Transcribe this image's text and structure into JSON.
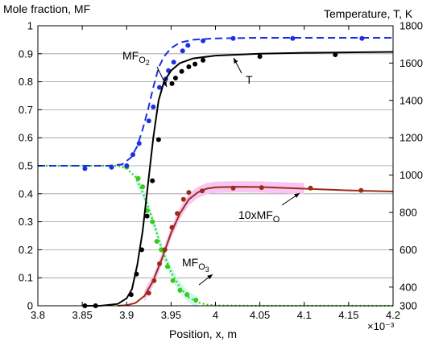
{
  "chart_data": {
    "type": "line",
    "ylabel_left": "Mole fraction, MF",
    "ylabel_right": "Temperature, T, K",
    "xlabel": "Position, x, m",
    "x_exponent": "×10⁻³",
    "xlim": [
      3.8,
      4.2
    ],
    "ylim_left": [
      0,
      1
    ],
    "ylim_right": [
      300,
      1800
    ],
    "x_ticks": [
      "3.8",
      "3.85",
      "3.9",
      "3.95",
      "4",
      "4.05",
      "4.1",
      "4.15",
      "4.2"
    ],
    "y_left_ticks": [
      "0",
      "0.1",
      "0.2",
      "0.3",
      "0.4",
      "0.5",
      "0.6",
      "0.7",
      "0.8",
      "0.9",
      "1"
    ],
    "y_right_ticks": [
      "300",
      "400",
      "600",
      "800",
      "1000",
      "1200",
      "1400",
      "1600",
      "1800"
    ],
    "grid": true,
    "colors": {
      "O2": "#1a2fe6",
      "T": "#000000",
      "O3": "#33cc1a",
      "O": "#a02a18",
      "O_band": "#f7c6f2",
      "O3_band": "#c9f7e8"
    },
    "annotations": {
      "O2": {
        "main": "MF",
        "sub": "O",
        "sub2": "2"
      },
      "T": {
        "main": "T"
      },
      "O": {
        "main": "10xMF",
        "sub": "O"
      },
      "O3": {
        "main": "MF",
        "sub": "O",
        "sub2": "3"
      }
    },
    "series": [
      {
        "key": "O2",
        "axis": "left",
        "style": "dashed",
        "curve": [
          [
            3.8,
            0.5
          ],
          [
            3.85,
            0.5
          ],
          [
            3.88,
            0.5
          ],
          [
            3.895,
            0.505
          ],
          [
            3.905,
            0.53
          ],
          [
            3.912,
            0.57
          ],
          [
            3.918,
            0.63
          ],
          [
            3.924,
            0.7
          ],
          [
            3.93,
            0.78
          ],
          [
            3.936,
            0.85
          ],
          [
            3.942,
            0.89
          ],
          [
            3.95,
            0.92
          ],
          [
            3.96,
            0.94
          ],
          [
            3.975,
            0.95
          ],
          [
            4.0,
            0.955
          ],
          [
            4.05,
            0.957
          ],
          [
            4.1,
            0.957
          ],
          [
            4.2,
            0.957
          ]
        ],
        "points": [
          [
            3.853,
            0.49
          ],
          [
            3.883,
            0.495
          ],
          [
            3.9,
            0.5
          ],
          [
            3.907,
            0.54
          ],
          [
            3.914,
            0.58
          ],
          [
            3.925,
            0.66
          ],
          [
            3.93,
            0.71
          ],
          [
            3.937,
            0.78
          ],
          [
            3.944,
            0.81
          ],
          [
            3.947,
            0.84
          ],
          [
            3.953,
            0.87
          ],
          [
            3.963,
            0.91
          ],
          [
            3.969,
            0.93
          ],
          [
            3.986,
            0.946
          ],
          [
            4.02,
            0.955
          ],
          [
            4.087,
            0.955
          ],
          [
            4.165,
            0.955
          ]
        ]
      },
      {
        "key": "T",
        "axis": "right",
        "style": "solid",
        "curve": [
          [
            3.85,
            300
          ],
          [
            3.87,
            300
          ],
          [
            3.89,
            310
          ],
          [
            3.9,
            340
          ],
          [
            3.906,
            390
          ],
          [
            3.912,
            520
          ],
          [
            3.918,
            700
          ],
          [
            3.924,
            950
          ],
          [
            3.93,
            1200
          ],
          [
            3.936,
            1400
          ],
          [
            3.942,
            1500
          ],
          [
            3.95,
            1560
          ],
          [
            3.96,
            1600
          ],
          [
            3.975,
            1625
          ],
          [
            4.0,
            1640
          ],
          [
            4.05,
            1650
          ],
          [
            4.1,
            1655
          ],
          [
            4.2,
            1660
          ]
        ],
        "points": [
          [
            3.853,
            300
          ],
          [
            3.865,
            300
          ],
          [
            3.905,
            360
          ],
          [
            3.911,
            470
          ],
          [
            3.917,
            600
          ],
          [
            3.923,
            780
          ],
          [
            3.929,
            970
          ],
          [
            3.936,
            1190
          ],
          [
            3.951,
            1490
          ],
          [
            3.955,
            1520
          ],
          [
            3.962,
            1555
          ],
          [
            3.97,
            1580
          ],
          [
            3.977,
            1595
          ],
          [
            3.986,
            1615
          ],
          [
            4.05,
            1635
          ],
          [
            4.135,
            1645
          ]
        ]
      },
      {
        "key": "O3",
        "axis": "left",
        "style": "dotted",
        "curve": [
          [
            3.8,
            0.5
          ],
          [
            3.86,
            0.5
          ],
          [
            3.89,
            0.5
          ],
          [
            3.9,
            0.49
          ],
          [
            3.91,
            0.46
          ],
          [
            3.92,
            0.39
          ],
          [
            3.93,
            0.3
          ],
          [
            3.94,
            0.2
          ],
          [
            3.95,
            0.12
          ],
          [
            3.96,
            0.065
          ],
          [
            3.97,
            0.03
          ],
          [
            3.98,
            0.012
          ],
          [
            3.99,
            0.004
          ],
          [
            4.0,
            0.001
          ],
          [
            4.05,
            0
          ],
          [
            4.2,
            0
          ]
        ],
        "points": [
          [
            3.883,
            0.495
          ],
          [
            3.9,
            0.495
          ],
          [
            3.913,
            0.455
          ],
          [
            3.918,
            0.425
          ],
          [
            3.923,
            0.34
          ],
          [
            3.929,
            0.3
          ],
          [
            3.934,
            0.23
          ],
          [
            3.939,
            0.2
          ],
          [
            3.946,
            0.14
          ],
          [
            3.952,
            0.09
          ],
          [
            3.96,
            0.055
          ],
          [
            3.968,
            0.04
          ],
          [
            3.978,
            0.02
          ]
        ]
      },
      {
        "key": "O",
        "axis": "left",
        "style": "solid",
        "curve": [
          [
            3.89,
            0
          ],
          [
            3.9,
            0.002
          ],
          [
            3.91,
            0.01
          ],
          [
            3.92,
            0.035
          ],
          [
            3.93,
            0.09
          ],
          [
            3.94,
            0.17
          ],
          [
            3.95,
            0.26
          ],
          [
            3.96,
            0.33
          ],
          [
            3.97,
            0.38
          ],
          [
            3.98,
            0.405
          ],
          [
            3.99,
            0.418
          ],
          [
            4.0,
            0.423
          ],
          [
            4.025,
            0.425
          ],
          [
            4.05,
            0.424
          ],
          [
            4.1,
            0.418
          ],
          [
            4.15,
            0.412
          ],
          [
            4.2,
            0.408
          ]
        ],
        "points": [
          [
            3.925,
            0.045
          ],
          [
            3.931,
            0.09
          ],
          [
            3.937,
            0.15
          ],
          [
            3.943,
            0.2
          ],
          [
            3.951,
            0.28
          ],
          [
            3.957,
            0.33
          ],
          [
            3.964,
            0.38
          ],
          [
            3.97,
            0.405
          ],
          [
            3.985,
            0.41
          ],
          [
            4.02,
            0.42
          ],
          [
            4.052,
            0.422
          ],
          [
            4.107,
            0.42
          ],
          [
            4.164,
            0.412
          ]
        ]
      }
    ]
  }
}
